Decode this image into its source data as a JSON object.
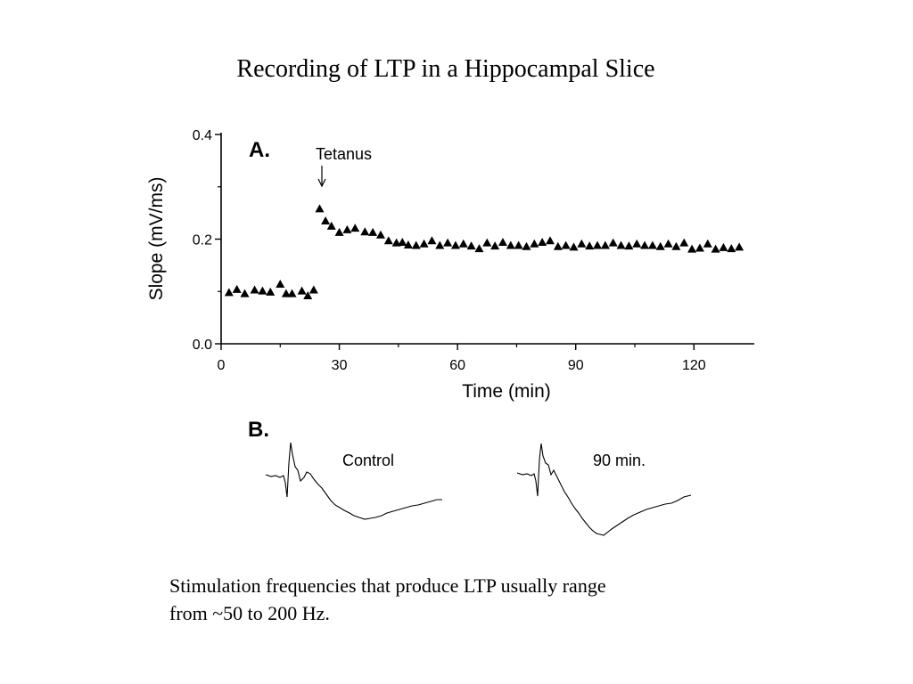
{
  "slide": {
    "title": "Recording of LTP in a Hippocampal Slice",
    "caption_lines": [
      "Stimulation frequencies that produce LTP usually range",
      "from ~50 to 200 Hz."
    ]
  },
  "chart_data": [
    {
      "type": "scatter",
      "panel_label": "A.",
      "xlabel": "Time  (min)",
      "ylabel": "Slope  (mV/ms)",
      "xlim": [
        0,
        136
      ],
      "ylim": [
        0,
        0.4
      ],
      "xticks": [
        0,
        30,
        60,
        90,
        120
      ],
      "yticks": [
        0.0,
        0.2,
        0.4
      ],
      "ytick_labels": [
        "0.0",
        "0.2",
        "0.4"
      ],
      "grid": false,
      "marker": "filled-triangle",
      "annotation": {
        "text": "Tetanus",
        "x": 26
      },
      "series": [
        {
          "x": [
            2,
            4,
            6,
            8.5,
            10.5,
            12.5,
            15,
            16.5,
            18,
            20.5,
            22,
            23.5,
            25,
            26.5,
            28,
            30,
            32,
            34,
            36.5,
            38.5,
            40.5,
            42.5,
            44.5,
            46,
            47.5,
            49.5,
            51.5,
            53.5,
            55.5,
            57.5,
            59.5,
            61.5,
            63.5,
            65.5,
            67.5,
            69.5,
            71.5,
            73.5,
            75.5,
            77.5,
            79.5,
            81.5,
            83.5,
            85.5,
            87.5,
            89.5,
            91.5,
            93.5,
            95.5,
            97.5,
            99.5,
            101.5,
            103.5,
            105.5,
            107.5,
            109.5,
            111.5,
            113.5,
            115.5,
            117.5,
            119.5,
            121.5,
            123.5,
            125.5,
            127.5,
            129.5,
            131.5
          ],
          "y": [
            0.098,
            0.104,
            0.096,
            0.103,
            0.101,
            0.099,
            0.114,
            0.096,
            0.096,
            0.101,
            0.092,
            0.103,
            0.258,
            0.235,
            0.225,
            0.213,
            0.218,
            0.221,
            0.214,
            0.213,
            0.208,
            0.197,
            0.193,
            0.194,
            0.189,
            0.188,
            0.191,
            0.197,
            0.188,
            0.193,
            0.188,
            0.191,
            0.187,
            0.182,
            0.193,
            0.187,
            0.194,
            0.188,
            0.188,
            0.186,
            0.191,
            0.194,
            0.197,
            0.186,
            0.188,
            0.185,
            0.191,
            0.187,
            0.188,
            0.188,
            0.193,
            0.188,
            0.187,
            0.191,
            0.188,
            0.188,
            0.186,
            0.191,
            0.186,
            0.193,
            0.181,
            0.183,
            0.191,
            0.181,
            0.184,
            0.182,
            0.185
          ]
        }
      ]
    },
    {
      "type": "line",
      "panel_label": "B.",
      "traces": [
        {
          "name": "Control",
          "label": "Control"
        },
        {
          "name": "90 min.",
          "label": "90 min."
        }
      ]
    }
  ]
}
